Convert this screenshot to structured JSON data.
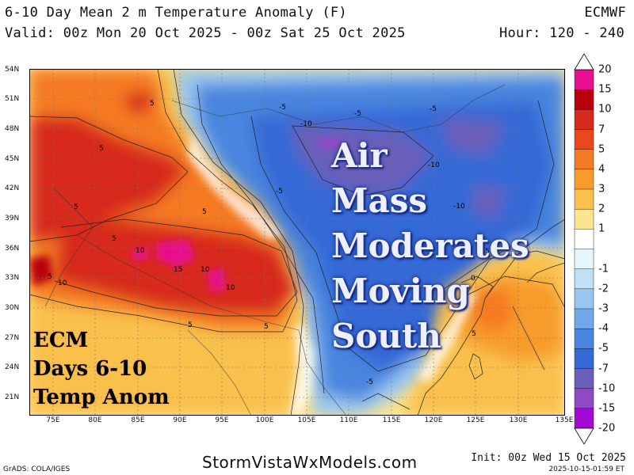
{
  "header": {
    "title": "6-10 Day Mean 2 m Temperature Anomaly (F)",
    "valid": "Valid: 00z Mon 20 Oct 2025 - 00z Sat 25 Oct 2025",
    "model": "ECMWF",
    "hour": "Hour: 120 - 240"
  },
  "map": {
    "lat_labels": [
      "54N",
      "51N",
      "48N",
      "45N",
      "42N",
      "39N",
      "36N",
      "33N",
      "30N",
      "27N",
      "24N",
      "21N"
    ],
    "lon_labels": [
      "75E",
      "80E",
      "85E",
      "90E",
      "95E",
      "100E",
      "105E",
      "110E",
      "115E",
      "120E",
      "125E",
      "130E",
      "135E"
    ],
    "contour_labels": [
      "5",
      "5",
      "5",
      "5",
      "10",
      "10",
      "15",
      "10",
      "10",
      "5",
      "5",
      "5",
      "5",
      "-5",
      "-5",
      "-10",
      "-10",
      "-5",
      "-10",
      "-5",
      "-5",
      "0",
      "-5",
      "5"
    ],
    "overlay_lines": [
      "Air",
      "Mass",
      "Moderates",
      "Moving",
      "South"
    ],
    "legend_lines": [
      "ECM",
      "Days 6-10",
      "Temp Anom"
    ]
  },
  "colorbar": {
    "labels": [
      "20",
      "15",
      "10",
      "7",
      "5",
      "4",
      "3",
      "2",
      "1",
      "-1",
      "-2",
      "-3",
      "-4",
      "-5",
      "-7",
      "-10",
      "-15",
      "-20"
    ],
    "colors": [
      "#e8108f",
      "#b8000c",
      "#d82a1c",
      "#e8481c",
      "#f57a24",
      "#f79c2c",
      "#f9c04c",
      "#fde48e",
      "#ffffff",
      "#e6f4fb",
      "#bfe0f5",
      "#98c6ef",
      "#6fa7e8",
      "#4a86df",
      "#3469d6",
      "#6a5fb9",
      "#8f49c4",
      "#a20ad4"
    ]
  },
  "footer": {
    "site": "StormVistaWxModels.com",
    "grads": "GrADS: COLA/IGES",
    "init": "Init: 00z Wed 15 Oct 2025",
    "timestamp": "2025-10-15-01:59 ET"
  }
}
